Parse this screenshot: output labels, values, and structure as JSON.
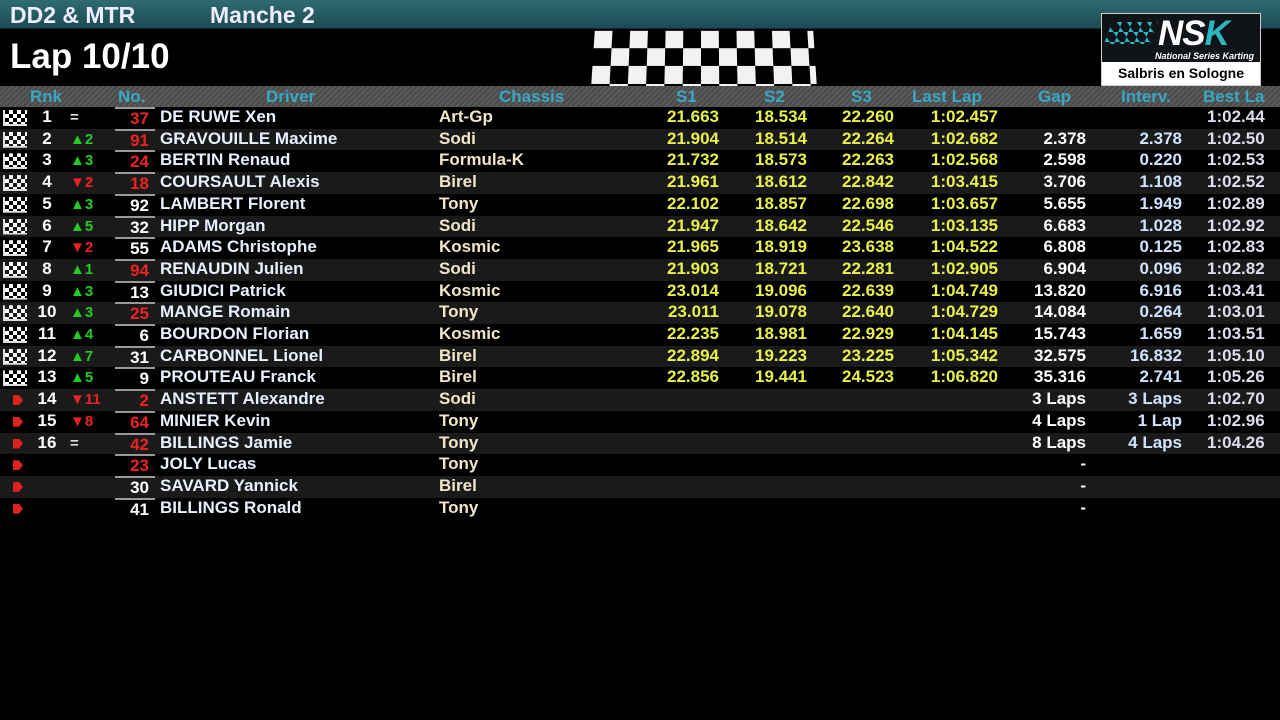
{
  "header": {
    "category": "DD2 & MTR",
    "session": "Manche 2",
    "lap": "Lap 10/10"
  },
  "logo": {
    "brand": "NSK",
    "tagline": "National Series Karting",
    "location": "Salbris en Sologne"
  },
  "columns": {
    "rank": "Rnk",
    "no": "No.",
    "driver": "Driver",
    "chassis": "Chassis",
    "s1": "S1",
    "s2": "S2",
    "s3": "S3",
    "last": "Last Lap",
    "gap": "Gap",
    "interval": "Interv.",
    "best": "Best La"
  },
  "colors": {
    "sector": "#e8f04a",
    "up": "#22cc22",
    "down": "#ee2222",
    "header_text": "#3aa7c4"
  },
  "rows": [
    {
      "status": "finished",
      "rank": "1",
      "chg": "=",
      "dir": "eq",
      "no": "37",
      "red": true,
      "driver": "DE RUWE Xen",
      "chassis": "Art-Gp",
      "s1": "21.663",
      "s2": "18.534",
      "s3": "22.260",
      "last": "1:02.457",
      "gap": "",
      "int": "",
      "best": "1:02.44"
    },
    {
      "status": "finished",
      "rank": "2",
      "chg": "▲2",
      "dir": "up",
      "no": "91",
      "red": true,
      "driver": "GRAVOUILLE Maxime",
      "chassis": "Sodi",
      "s1": "21.904",
      "s2": "18.514",
      "s3": "22.264",
      "last": "1:02.682",
      "gap": "2.378",
      "int": "2.378",
      "best": "1:02.50"
    },
    {
      "status": "finished",
      "rank": "3",
      "chg": "▲3",
      "dir": "up",
      "no": "24",
      "red": true,
      "driver": "BERTIN Renaud",
      "chassis": "Formula-K",
      "s1": "21.732",
      "s2": "18.573",
      "s3": "22.263",
      "last": "1:02.568",
      "gap": "2.598",
      "int": "0.220",
      "best": "1:02.53"
    },
    {
      "status": "finished",
      "rank": "4",
      "chg": "▼2",
      "dir": "dn",
      "no": "18",
      "red": true,
      "driver": "COURSAULT Alexis",
      "chassis": "Birel",
      "s1": "21.961",
      "s2": "18.612",
      "s3": "22.842",
      "last": "1:03.415",
      "gap": "3.706",
      "int": "1.108",
      "best": "1:02.52"
    },
    {
      "status": "finished",
      "rank": "5",
      "chg": "▲3",
      "dir": "up",
      "no": "92",
      "red": false,
      "driver": "LAMBERT Florent",
      "chassis": "Tony",
      "s1": "22.102",
      "s2": "18.857",
      "s3": "22.698",
      "last": "1:03.657",
      "gap": "5.655",
      "int": "1.949",
      "best": "1:02.89"
    },
    {
      "status": "finished",
      "rank": "6",
      "chg": "▲5",
      "dir": "up",
      "no": "32",
      "red": false,
      "driver": "HIPP Morgan",
      "chassis": "Sodi",
      "s1": "21.947",
      "s2": "18.642",
      "s3": "22.546",
      "last": "1:03.135",
      "gap": "6.683",
      "int": "1.028",
      "best": "1:02.92"
    },
    {
      "status": "finished",
      "rank": "7",
      "chg": "▼2",
      "dir": "dn",
      "no": "55",
      "red": false,
      "driver": "ADAMS Christophe",
      "chassis": "Kosmic",
      "s1": "21.965",
      "s2": "18.919",
      "s3": "23.638",
      "last": "1:04.522",
      "gap": "6.808",
      "int": "0.125",
      "best": "1:02.83"
    },
    {
      "status": "finished",
      "rank": "8",
      "chg": "▲1",
      "dir": "up",
      "no": "94",
      "red": true,
      "driver": "RENAUDIN Julien",
      "chassis": "Sodi",
      "s1": "21.903",
      "s2": "18.721",
      "s3": "22.281",
      "last": "1:02.905",
      "gap": "6.904",
      "int": "0.096",
      "best": "1:02.82"
    },
    {
      "status": "finished",
      "rank": "9",
      "chg": "▲3",
      "dir": "up",
      "no": "13",
      "red": false,
      "driver": "GIUDICI Patrick",
      "chassis": "Kosmic",
      "s1": "23.014",
      "s2": "19.096",
      "s3": "22.639",
      "last": "1:04.749",
      "gap": "13.820",
      "int": "6.916",
      "best": "1:03.41"
    },
    {
      "status": "finished",
      "rank": "10",
      "chg": "▲3",
      "dir": "up",
      "no": "25",
      "red": true,
      "driver": "MANGE Romain",
      "chassis": "Tony",
      "s1": "23.011",
      "s2": "19.078",
      "s3": "22.640",
      "last": "1:04.729",
      "gap": "14.084",
      "int": "0.264",
      "best": "1:03.01"
    },
    {
      "status": "finished",
      "rank": "11",
      "chg": "▲4",
      "dir": "up",
      "no": "6",
      "red": false,
      "driver": "BOURDON Florian",
      "chassis": "Kosmic",
      "s1": "22.235",
      "s2": "18.981",
      "s3": "22.929",
      "last": "1:04.145",
      "gap": "15.743",
      "int": "1.659",
      "best": "1:03.51"
    },
    {
      "status": "finished",
      "rank": "12",
      "chg": "▲7",
      "dir": "up",
      "no": "31",
      "red": false,
      "driver": "CARBONNEL Lionel",
      "chassis": "Birel",
      "s1": "22.894",
      "s2": "19.223",
      "s3": "23.225",
      "last": "1:05.342",
      "gap": "32.575",
      "int": "16.832",
      "best": "1:05.10"
    },
    {
      "status": "finished",
      "rank": "13",
      "chg": "▲5",
      "dir": "up",
      "no": "9",
      "red": false,
      "driver": "PROUTEAU Franck",
      "chassis": "Birel",
      "s1": "22.856",
      "s2": "19.441",
      "s3": "24.523",
      "last": "1:06.820",
      "gap": "35.316",
      "int": "2.741",
      "best": "1:05.26"
    },
    {
      "status": "retired",
      "rank": "14",
      "chg": "▼11",
      "dir": "dn",
      "no": "2",
      "red": true,
      "driver": "ANSTETT Alexandre",
      "chassis": "Sodi",
      "s1": "",
      "s2": "",
      "s3": "",
      "last": "",
      "gap": "3 Laps",
      "int": "3 Laps",
      "best": "1:02.70"
    },
    {
      "status": "retired",
      "rank": "15",
      "chg": "▼8",
      "dir": "dn",
      "no": "64",
      "red": true,
      "driver": "MINIER Kevin",
      "chassis": "Tony",
      "s1": "",
      "s2": "",
      "s3": "",
      "last": "",
      "gap": "4 Laps",
      "int": "1 Lap",
      "best": "1:02.96"
    },
    {
      "status": "retired",
      "rank": "16",
      "chg": "=",
      "dir": "eq",
      "no": "42",
      "red": true,
      "driver": "BILLINGS Jamie",
      "chassis": "Tony",
      "s1": "",
      "s2": "",
      "s3": "",
      "last": "",
      "gap": "8 Laps",
      "int": "4 Laps",
      "best": "1:04.26"
    },
    {
      "status": "retired",
      "rank": "",
      "chg": "",
      "dir": "eq",
      "no": "23",
      "red": true,
      "driver": "JOLY Lucas",
      "chassis": "Tony",
      "s1": "",
      "s2": "",
      "s3": "",
      "last": "",
      "gap": "-",
      "int": "",
      "best": ""
    },
    {
      "status": "retired",
      "rank": "",
      "chg": "",
      "dir": "eq",
      "no": "30",
      "red": false,
      "driver": "SAVARD Yannick",
      "chassis": "Birel",
      "s1": "",
      "s2": "",
      "s3": "",
      "last": "",
      "gap": "-",
      "int": "",
      "best": ""
    },
    {
      "status": "retired",
      "rank": "",
      "chg": "",
      "dir": "eq",
      "no": "41",
      "red": false,
      "driver": "BILLINGS Ronald",
      "chassis": "Tony",
      "s1": "",
      "s2": "",
      "s3": "",
      "last": "",
      "gap": "-",
      "int": "",
      "best": ""
    }
  ]
}
